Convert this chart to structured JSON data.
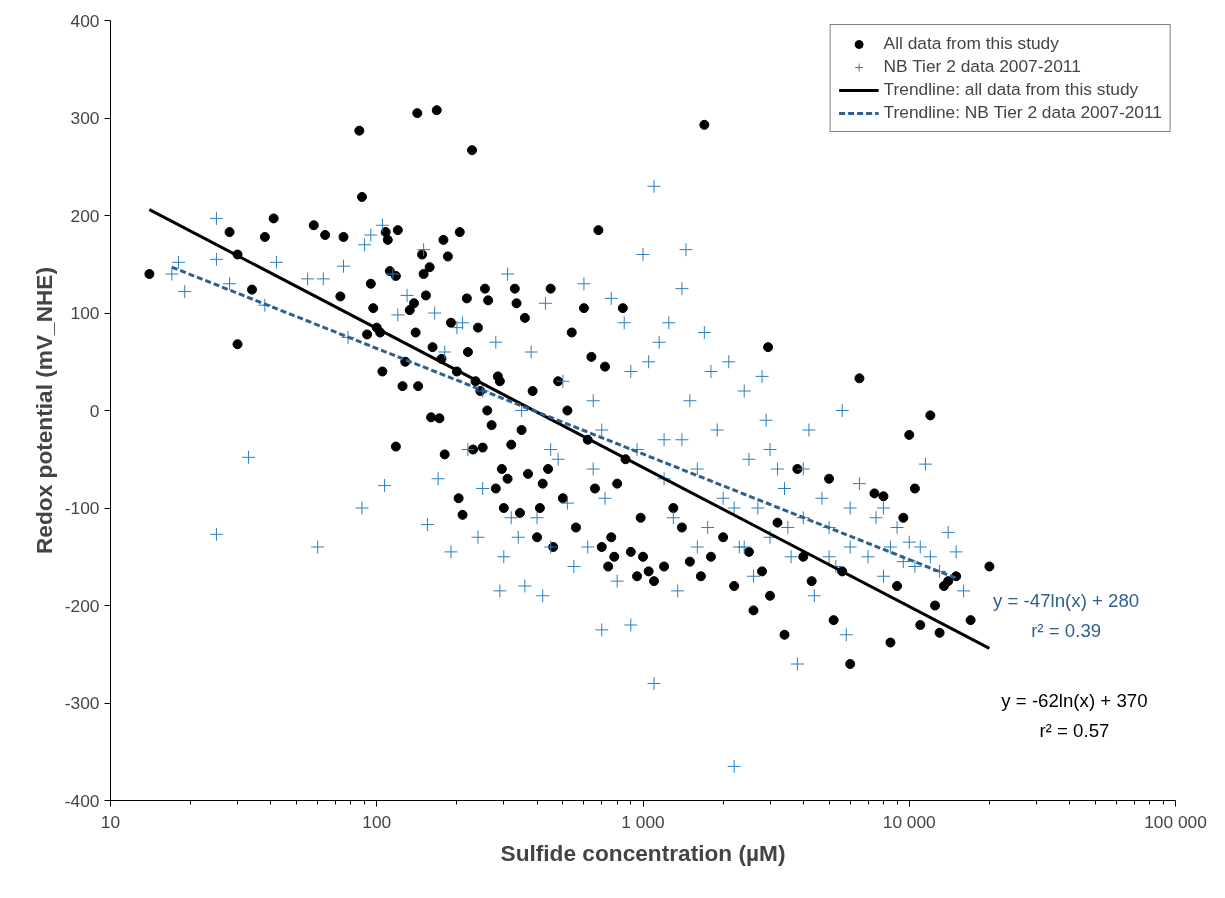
{
  "chart_data": {
    "type": "scatter",
    "xlabel": "Sulfide concentration (µM)",
    "ylabel": "Redox potential (mV_NHE)",
    "log": "x",
    "xlim": [
      10,
      100000
    ],
    "xticks": [
      10,
      100,
      {
        "value": 1000,
        "label": "1 000"
      },
      {
        "value": 10000,
        "label": "10 000"
      },
      {
        "value": 100000,
        "label": "100 000"
      }
    ],
    "ylim": [
      -400,
      400
    ],
    "yticks": [
      -400,
      -300,
      -200,
      -100,
      0,
      100,
      200,
      300,
      400
    ],
    "grid": false,
    "legend": "top right",
    "series": [
      {
        "name": "All data from this study",
        "color": "#000000",
        "marker": "circle",
        "x": [
          14,
          28,
          30,
          30,
          34,
          38,
          41,
          58,
          64,
          75,
          73,
          86,
          88,
          92,
          95,
          97,
          100,
          103,
          105,
          108,
          110,
          112,
          118,
          120,
          118,
          125,
          128,
          133,
          138,
          140,
          142,
          143,
          148,
          150,
          153,
          158,
          160,
          162,
          168,
          172,
          175,
          178,
          180,
          185,
          190,
          200,
          203,
          205,
          210,
          218,
          220,
          228,
          230,
          235,
          240,
          245,
          250,
          255,
          260,
          262,
          270,
          280,
          285,
          290,
          295,
          300,
          310,
          320,
          330,
          335,
          345,
          350,
          360,
          370,
          385,
          400,
          410,
          420,
          440,
          450,
          460,
          480,
          500,
          520,
          540,
          560,
          600,
          620,
          640,
          660,
          680,
          700,
          720,
          740,
          760,
          780,
          800,
          840,
          860,
          900,
          950,
          980,
          1000,
          1050,
          1100,
          1200,
          1300,
          1400,
          1500,
          1650,
          1700,
          1800,
          2000,
          2200,
          2500,
          2600,
          2800,
          2950,
          3000,
          3200,
          3400,
          3800,
          4000,
          4300,
          5000,
          5200,
          5600,
          6000,
          6500,
          7400,
          8000,
          8500,
          9000,
          9500,
          10000,
          10500,
          11000,
          12000,
          12500,
          13000,
          13500,
          14000,
          15000,
          17000,
          20000
        ],
        "values": [
          140,
          183,
          160,
          68,
          124,
          178,
          197,
          190,
          180,
          178,
          117,
          287,
          219,
          78,
          130,
          105,
          85,
          80,
          40,
          183,
          175,
          143,
          138,
          185,
          -37,
          25,
          50,
          103,
          110,
          80,
          305,
          25,
          160,
          140,
          118,
          147,
          -7,
          65,
          308,
          -8,
          53,
          175,
          -45,
          158,
          90,
          40,
          -90,
          183,
          -107,
          115,
          60,
          267,
          -40,
          30,
          85,
          20,
          -38,
          125,
          0,
          113,
          -15,
          -80,
          35,
          30,
          -60,
          -100,
          -70,
          -35,
          125,
          110,
          -105,
          -20,
          95,
          -65,
          20,
          -130,
          -100,
          -75,
          -60,
          125,
          -140,
          30,
          -90,
          0,
          80,
          -120,
          105,
          -30,
          55,
          -80,
          185,
          -140,
          45,
          -160,
          -130,
          -150,
          -75,
          105,
          -50,
          -145,
          -170,
          -110,
          -150,
          -165,
          -175,
          -160,
          -100,
          -120,
          -155,
          -170,
          293,
          -150,
          -130,
          -180,
          -145,
          -205,
          -165,
          65,
          -190,
          -115,
          -230,
          -60,
          -150,
          -175,
          -70,
          -215,
          -165,
          -260,
          33,
          -85,
          -88,
          -238,
          -180,
          -110,
          -25,
          -80,
          -220,
          -5,
          -200,
          -228,
          -180,
          -175,
          -170,
          -215,
          -160
        ]
      },
      {
        "name": "NB Tier 2 data 2007-2011",
        "color": "#2e7fc0",
        "marker": "cross",
        "x": [
          17,
          18,
          19,
          25,
          25,
          25,
          28,
          33,
          38,
          42,
          55,
          60,
          63,
          75,
          78,
          88,
          90,
          95,
          105,
          107,
          115,
          120,
          130,
          150,
          155,
          165,
          170,
          190,
          200,
          210,
          220,
          240,
          250,
          280,
          290,
          300,
          310,
          320,
          340,
          360,
          380,
          400,
          420,
          430,
          450,
          480,
          520,
          550,
          600,
          620,
          650,
          700,
          720,
          760,
          800,
          850,
          900,
          950,
          1000,
          1050,
          1100,
          1100,
          1150,
          1200,
          1250,
          1300,
          1350,
          1400,
          1450,
          1500,
          1600,
          1700,
          1750,
          1800,
          1900,
          2000,
          2100,
          2200,
          2300,
          2400,
          2500,
          2600,
          2700,
          2800,
          2900,
          3000,
          3200,
          3400,
          3600,
          3800,
          4000,
          4200,
          4400,
          4700,
          5000,
          5300,
          5600,
          5800,
          6000,
          6500,
          7000,
          7500,
          8000,
          8500,
          9000,
          9500,
          10000,
          10500,
          11000,
          11500,
          12000,
          13000,
          14000,
          15000,
          16000,
          500,
          700,
          900,
          1200,
          1600,
          2200,
          3000,
          4000,
          6000,
          8000,
          350,
          250,
          180,
          450,
          650,
          1400,
          2400,
          3500,
          5000
        ],
        "values": [
          140,
          152,
          122,
          197,
          155,
          -127,
          130,
          -48,
          108,
          152,
          135,
          -140,
          135,
          148,
          75,
          -100,
          170,
          180,
          190,
          -77,
          140,
          98,
          118,
          165,
          -117,
          100,
          -70,
          -145,
          85,
          90,
          -40,
          -130,
          -80,
          70,
          -185,
          -150,
          140,
          -110,
          -130,
          -180,
          60,
          -110,
          -190,
          110,
          -140,
          -50,
          -95,
          -160,
          130,
          -140,
          10,
          -225,
          -90,
          115,
          -175,
          90,
          -220,
          -40,
          160,
          50,
          230,
          -280,
          70,
          -30,
          90,
          -110,
          -185,
          125,
          165,
          10,
          -60,
          80,
          -120,
          40,
          -20,
          -90,
          50,
          -365,
          -140,
          20,
          -50,
          -170,
          -100,
          35,
          -10,
          -130,
          -60,
          -80,
          -150,
          -260,
          -110,
          -20,
          -190,
          -90,
          -120,
          -160,
          0,
          -230,
          -140,
          -75,
          -150,
          -110,
          -170,
          -140,
          -120,
          -155,
          -135,
          -160,
          -140,
          -55,
          -150,
          -165,
          -125,
          -145,
          -185,
          30,
          -20,
          40,
          -70,
          -140,
          -100,
          -40,
          -60,
          -100,
          -100,
          0,
          20,
          60,
          -40,
          -60,
          -30,
          -140,
          -120,
          -150
        ]
      },
      {
        "name": "Trendline: all data from this study",
        "type": "line",
        "color": "#000000",
        "line_style": "solid",
        "x": [
          14,
          20000
        ],
        "values": [
          206,
          -244
        ]
      },
      {
        "name": "Trendline: NB Tier 2 data 2007-2011",
        "type": "line",
        "color": "#2f5f8f",
        "line_style": "dashed",
        "x": [
          17,
          15000
        ],
        "values": [
          147,
          -172
        ]
      }
    ],
    "annotations": [
      "y = -47ln(x) + 280",
      "r² = 0.39",
      "y = -62ln(x) + 370",
      "r² = 0.57"
    ]
  }
}
